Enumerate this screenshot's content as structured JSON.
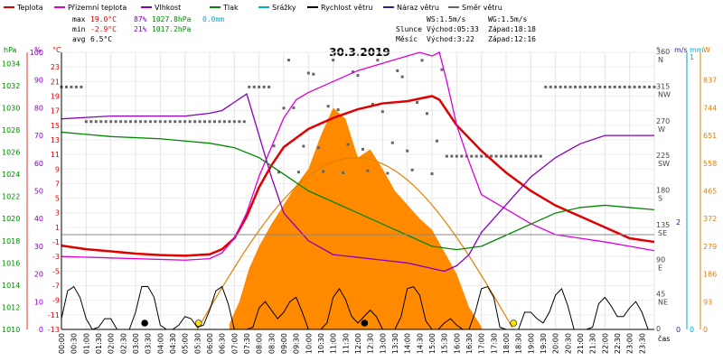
{
  "chart_data": {
    "type": "line",
    "title": "30.3.2019",
    "legend": [
      {
        "name": "Teplota",
        "color": "#e00000"
      },
      {
        "name": "Přízemní teplota",
        "color": "#dd00dd"
      },
      {
        "name": "Vlhkost",
        "color": "#8800bb"
      },
      {
        "name": "Tlak",
        "color": "#008800"
      },
      {
        "name": "Srážky",
        "color": "#00aacc"
      },
      {
        "name": "Rychlost větru",
        "color": "#000000"
      },
      {
        "name": "Náraz větru",
        "color": "#2a1aaa"
      },
      {
        "name": "Směr větru",
        "color": "#666666"
      }
    ],
    "stats": {
      "max": {
        "label": "max",
        "temp": "19.0°C",
        "hum": "87%",
        "press": "1027.8hPa",
        "rain": "0.0mm"
      },
      "min": {
        "label": "min",
        "temp": "-2.9°C",
        "hum": "21%",
        "press": "1017.2hPa"
      },
      "avg": {
        "label": "avg",
        "temp": "6.5°C"
      }
    },
    "info": {
      "ws": "WS:1.5m/s",
      "wg": "WG:1.5m/s",
      "sun_label": "Slunce",
      "sunrise": "Východ:05:33",
      "sunset": "Západ:18:18",
      "moon_label": "Měsíc",
      "moonrise": "Východ:3:22",
      "moonset": "Západ:12:16"
    },
    "axes": {
      "hpa_label": "hPa",
      "pct_label": "%",
      "c_label": "°C",
      "deg_label": "°",
      "ms_label": "m/s",
      "mm_label": "mm",
      "w_label": "W",
      "x_label": "čas",
      "hpa_ticks": [
        "1034",
        "1032",
        "1030",
        "1028",
        "1026",
        "1024",
        "1022",
        "1020",
        "1018",
        "1016",
        "1014",
        "1012",
        "1010"
      ],
      "pct_ticks": [
        "100",
        "90",
        "80",
        "70",
        "60",
        "50",
        "40",
        "30",
        "20",
        "10",
        "0"
      ],
      "c_ticks": [
        "23",
        "21",
        "19",
        "17",
        "15",
        "13",
        "11",
        "9",
        "7",
        "5",
        "3",
        "1",
        "-1",
        "-3",
        "-5",
        "-7",
        "-9",
        "-11",
        "-13"
      ],
      "deg_ticks": [
        {
          "v": "360",
          "d": "N"
        },
        {
          "v": "315",
          "d": "NW"
        },
        {
          "v": "270",
          "d": "W"
        },
        {
          "v": "225",
          "d": "SW"
        },
        {
          "v": "180",
          "d": "S"
        },
        {
          "v": "135",
          "d": "SE"
        },
        {
          "v": "90",
          "d": "E"
        },
        {
          "v": "45",
          "d": "NE"
        },
        {
          "v": "0",
          "d": ""
        }
      ],
      "ms_ticks": [
        "2",
        "0"
      ],
      "mm_ticks": [
        "1",
        "0"
      ],
      "w_ticks": [
        "837",
        "744",
        "651",
        "558",
        "465",
        "372",
        "279",
        "186",
        "93",
        "0"
      ],
      "time_ticks": [
        "00:00",
        "00:30",
        "01:00",
        "01:30",
        "02:00",
        "02:30",
        "03:00",
        "03:30",
        "04:00",
        "04:30",
        "05:00",
        "05:30",
        "06:00",
        "06:30",
        "07:00",
        "07:30",
        "08:00",
        "08:30",
        "09:00",
        "09:30",
        "10:00",
        "10:30",
        "11:00",
        "11:30",
        "12:00",
        "12:30",
        "13:00",
        "13:30",
        "14:00",
        "14:30",
        "15:00",
        "15:30",
        "16:00",
        "16:30",
        "17:00",
        "17:30",
        "18:00",
        "18:30",
        "19:00",
        "19:30",
        "20:00",
        "20:30",
        "21:00",
        "21:30",
        "22:00",
        "22:30",
        "23:00",
        "23:30"
      ]
    },
    "series": [
      {
        "name": "Teplota",
        "unit": "°C",
        "x": [
          0,
          1,
          2,
          3,
          4,
          5,
          6,
          6.5,
          7,
          7.5,
          8,
          8.5,
          9,
          10,
          11,
          12,
          13,
          14,
          15,
          15.3,
          16,
          17,
          18,
          19,
          20,
          21,
          22,
          23,
          24
        ],
        "y": [
          -1.5,
          -2.0,
          -2.3,
          -2.6,
          -2.8,
          -2.9,
          -2.7,
          -2.0,
          -0.5,
          2.5,
          6.5,
          9.5,
          12.0,
          14.5,
          16.0,
          17.2,
          18.0,
          18.3,
          19.0,
          18.5,
          15.0,
          11.5,
          8.5,
          6.0,
          4.0,
          2.5,
          1.0,
          -0.5,
          -1.0
        ]
      },
      {
        "name": "Přízemní teplota",
        "unit": "°C",
        "x": [
          0,
          1,
          2,
          3,
          4,
          5,
          6,
          6.5,
          7,
          7.5,
          8,
          8.5,
          9,
          9.5,
          10,
          11,
          12,
          13,
          14,
          14.5,
          15,
          15.3,
          15.6,
          16,
          16.5,
          17,
          18,
          19,
          20,
          21,
          22,
          23,
          24
        ],
        "y": [
          -3.0,
          -3.1,
          -3.2,
          -3.3,
          -3.4,
          -3.5,
          -3.3,
          -2.5,
          -0.5,
          3.0,
          8.0,
          12.0,
          16.0,
          18.5,
          19.5,
          21.0,
          22.5,
          23.5,
          24.5,
          25.0,
          24.5,
          25.0,
          21.0,
          15.0,
          10.0,
          5.5,
          3.5,
          1.5,
          0.0,
          -0.5,
          -1.0,
          -1.6,
          -2.2
        ]
      },
      {
        "name": "Vlhkost",
        "unit": "%",
        "x": [
          0,
          1,
          2,
          3,
          4,
          5,
          6,
          6.5,
          7,
          7.5,
          8,
          8.5,
          9,
          10,
          11,
          12,
          13,
          14,
          15,
          15.5,
          16,
          16.5,
          17,
          18,
          19,
          20,
          21,
          22,
          23,
          24
        ],
        "y": [
          76,
          76.5,
          77,
          77,
          77,
          77,
          78,
          79,
          82,
          85,
          70,
          55,
          42,
          32,
          27,
          26,
          25,
          24,
          22,
          21,
          23,
          27,
          35,
          45,
          55,
          62,
          67,
          70,
          70,
          70
        ]
      },
      {
        "name": "Tlak",
        "unit": "hPa",
        "x": [
          0,
          1,
          2,
          3,
          4,
          5,
          6,
          7,
          8,
          9,
          10,
          11,
          12,
          13,
          14,
          15,
          16,
          17,
          18,
          19,
          20,
          21,
          22,
          23,
          24
        ],
        "y": [
          1027.8,
          1027.6,
          1027.4,
          1027.3,
          1027.2,
          1027.0,
          1026.8,
          1026.4,
          1025.5,
          1024.0,
          1022.5,
          1021.5,
          1020.5,
          1019.5,
          1018.5,
          1017.5,
          1017.2,
          1017.5,
          1018.5,
          1019.5,
          1020.5,
          1021.0,
          1021.2,
          1021.0,
          1020.8
        ]
      }
    ],
    "ylim_temp": [
      -13,
      25
    ],
    "ylim_hum": [
      0,
      100
    ],
    "ylim_press": [
      1010,
      1035
    ],
    "grid": true
  }
}
